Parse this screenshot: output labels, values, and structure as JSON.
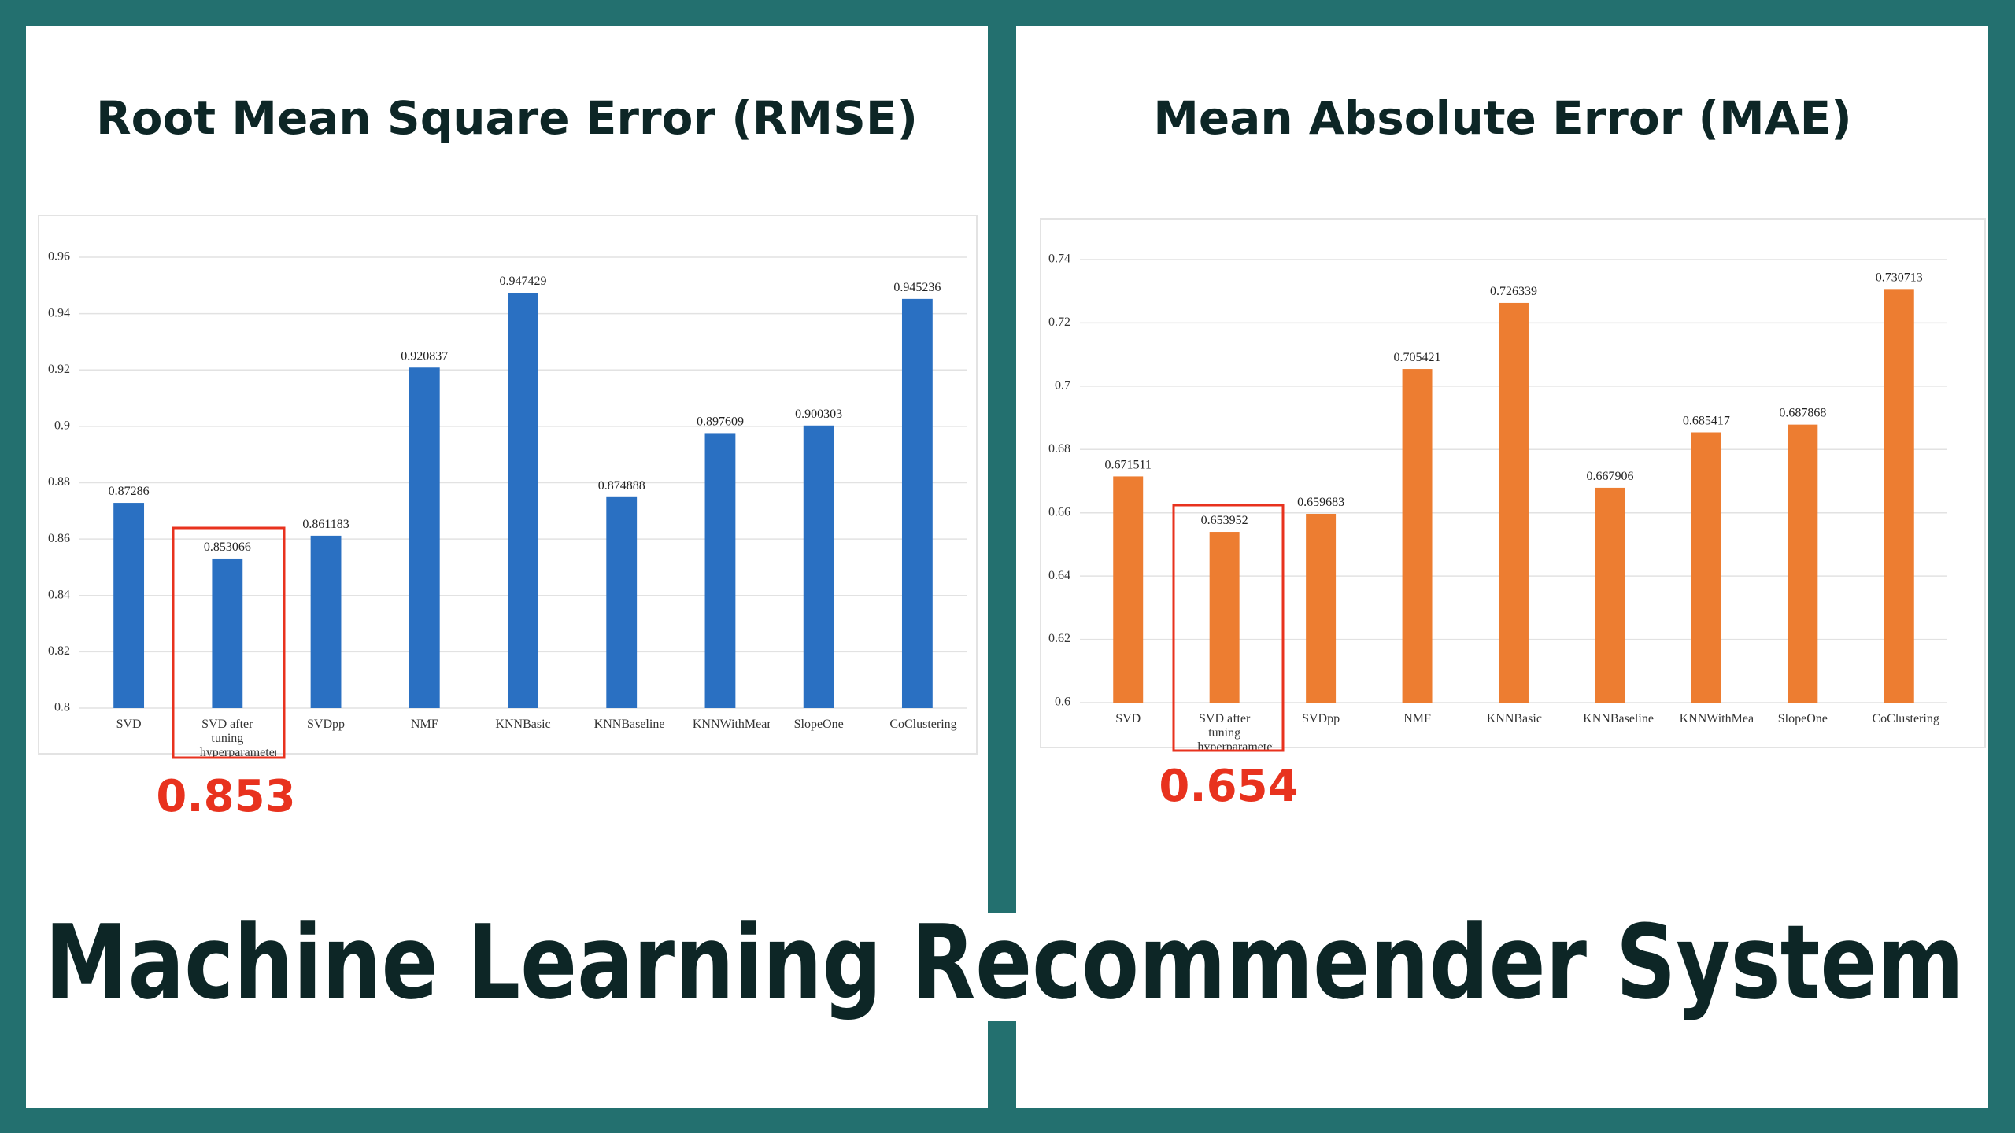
{
  "chart_data": [
    {
      "type": "bar",
      "title": "Root Mean Square Error (RMSE)",
      "categories": [
        "SVD",
        "SVD after tuning hyperparameters",
        "SVDpp",
        "NMF",
        "KNNBasic",
        "KNNBaseline",
        "KNNWithMeans",
        "SlopeOne",
        "CoClustering"
      ],
      "values": [
        0.87286,
        0.853066,
        0.861183,
        0.920837,
        0.947429,
        0.874888,
        0.897609,
        0.900303,
        0.945236
      ],
      "color": "#2a70c2",
      "ylim": [
        0.8,
        0.96
      ],
      "yticks": [
        0.8,
        0.82,
        0.84,
        0.86,
        0.88,
        0.9,
        0.92,
        0.94,
        0.96
      ],
      "grid": true,
      "annotation": "0.853"
    },
    {
      "type": "bar",
      "title": "Mean Absolute Error (MAE)",
      "categories": [
        "SVD",
        "SVD after tuning hyperparameters",
        "SVDpp",
        "NMF",
        "KNNBasic",
        "KNNBaseline",
        "KNNWithMeans",
        "SlopeOne",
        "CoClustering"
      ],
      "values": [
        0.671511,
        0.653952,
        0.659683,
        0.705421,
        0.726339,
        0.667906,
        0.685417,
        0.687868,
        0.730713
      ],
      "color": "#ed7d31",
      "ylim": [
        0.6,
        0.74
      ],
      "yticks": [
        0.6,
        0.62,
        0.64,
        0.66,
        0.68,
        0.7,
        0.72,
        0.74
      ],
      "grid": true,
      "annotation": "0.654"
    }
  ],
  "headline": "Machine Learning Recommender System"
}
